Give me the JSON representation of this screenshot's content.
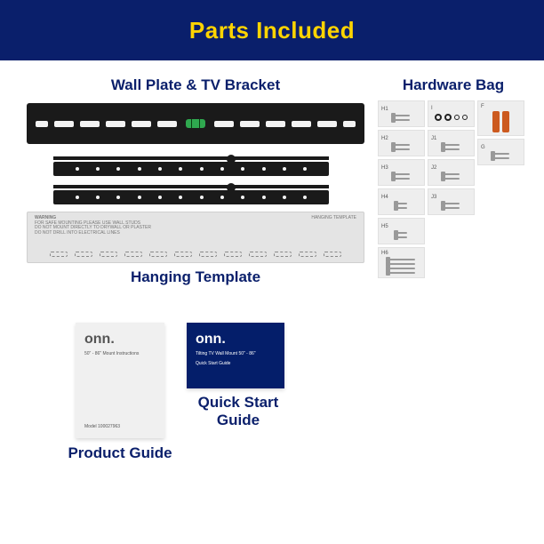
{
  "colors": {
    "title_bar_bg": "#0a1f6b",
    "title_text": "#ffd400",
    "label_text": "#0a1f6b",
    "background": "#ffffff"
  },
  "title": "Parts Included",
  "labels": {
    "wall_plate": "Wall Plate & TV Bracket",
    "hardware_bag": "Hardware Bag",
    "hanging_template": "Hanging Template",
    "quick_start": "Quick Start Guide",
    "product_guide": "Product Guide"
  },
  "label_fontsize": 17,
  "hardware": {
    "col1": [
      {
        "id": "H1",
        "type": "screw",
        "count": 2,
        "len": "short"
      },
      {
        "id": "H2",
        "type": "screw",
        "count": 2,
        "len": "short"
      },
      {
        "id": "H3",
        "type": "screw",
        "count": 2,
        "len": "short"
      },
      {
        "id": "H4",
        "type": "screw",
        "count": 2,
        "len": "tiny"
      },
      {
        "id": "H5",
        "type": "screw",
        "count": 2,
        "len": "tiny"
      },
      {
        "id": "H6",
        "type": "screw",
        "count": 4,
        "len": "long"
      }
    ],
    "col2": [
      {
        "id": "I",
        "type": "washer",
        "count": 4
      },
      {
        "id": "J1",
        "type": "screw",
        "count": 2,
        "len": "short"
      },
      {
        "id": "J2",
        "type": "screw",
        "count": 2,
        "len": "short"
      },
      {
        "id": "J3",
        "type": "screw",
        "count": 2,
        "len": "short"
      }
    ],
    "col3": [
      {
        "id": "F",
        "type": "anchor",
        "count": 2
      },
      {
        "id": "G",
        "type": "screw",
        "count": 2,
        "len": "short"
      }
    ]
  },
  "guides": {
    "product": {
      "brand": "onn.",
      "subtitle": "50\" - 86\" Mount Instructions",
      "model": "Model 100027963"
    },
    "quick": {
      "brand": "onn.",
      "subtitle": "Tilting TV Wall Mount 50\" - 86\"",
      "line2": "Quick Start Guide"
    }
  },
  "template_title": "HANGING TEMPLATE",
  "template_warning": "WARNING"
}
